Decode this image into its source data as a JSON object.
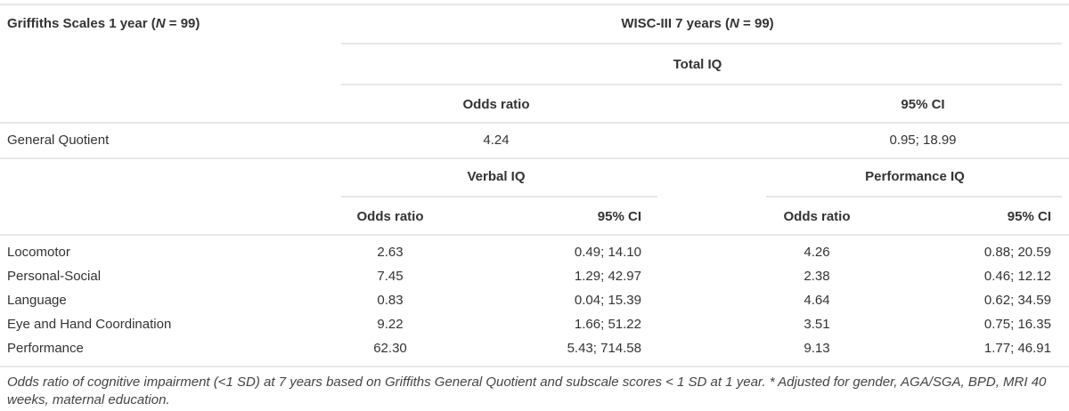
{
  "table": {
    "header": {
      "left": {
        "before": "Griffiths Scales 1 year (",
        "italic": "N",
        "after": " = 99)"
      },
      "right": {
        "before": "WISC-III 7 years (",
        "italic": "N",
        "after": " = 99)"
      }
    },
    "total_iq": {
      "title": "Total IQ",
      "columns": [
        "Odds ratio",
        "95% CI"
      ],
      "rows": [
        {
          "label": "General Quotient",
          "cells": [
            "4.24",
            "0.95; 18.99"
          ]
        }
      ]
    },
    "subscales": {
      "groups": [
        {
          "title": "Verbal IQ",
          "columns": [
            "Odds ratio",
            "95% CI"
          ]
        },
        {
          "title": "Performance IQ",
          "columns": [
            "Odds ratio",
            "95% CI"
          ]
        }
      ],
      "rows": [
        {
          "label": "Locomotor",
          "cells": [
            "2.63",
            "0.49; 14.10",
            "4.26",
            "0.88; 20.59"
          ]
        },
        {
          "label": "Personal-Social",
          "cells": [
            "7.45",
            "1.29; 42.97",
            "2.38",
            "0.46; 12.12"
          ]
        },
        {
          "label": "Language",
          "cells": [
            "0.83",
            "0.04; 15.39",
            "4.64",
            "0.62; 34.59"
          ]
        },
        {
          "label": "Eye and Hand Coordination",
          "cells": [
            "9.22",
            "1.66; 51.22",
            "3.51",
            "0.75; 16.35"
          ]
        },
        {
          "label": "Performance",
          "cells": [
            "62.30",
            "5.43; 714.58",
            "9.13",
            "1.77; 46.91"
          ]
        }
      ]
    }
  },
  "footnote": "Odds ratio of cognitive impairment (<1 SD) at 7 years based on Griffiths General Quotient and subscale scores < 1 SD at 1 year. * Adjusted for gender, AGA/SGA, BPD, MRI 40 weeks, maternal education."
}
